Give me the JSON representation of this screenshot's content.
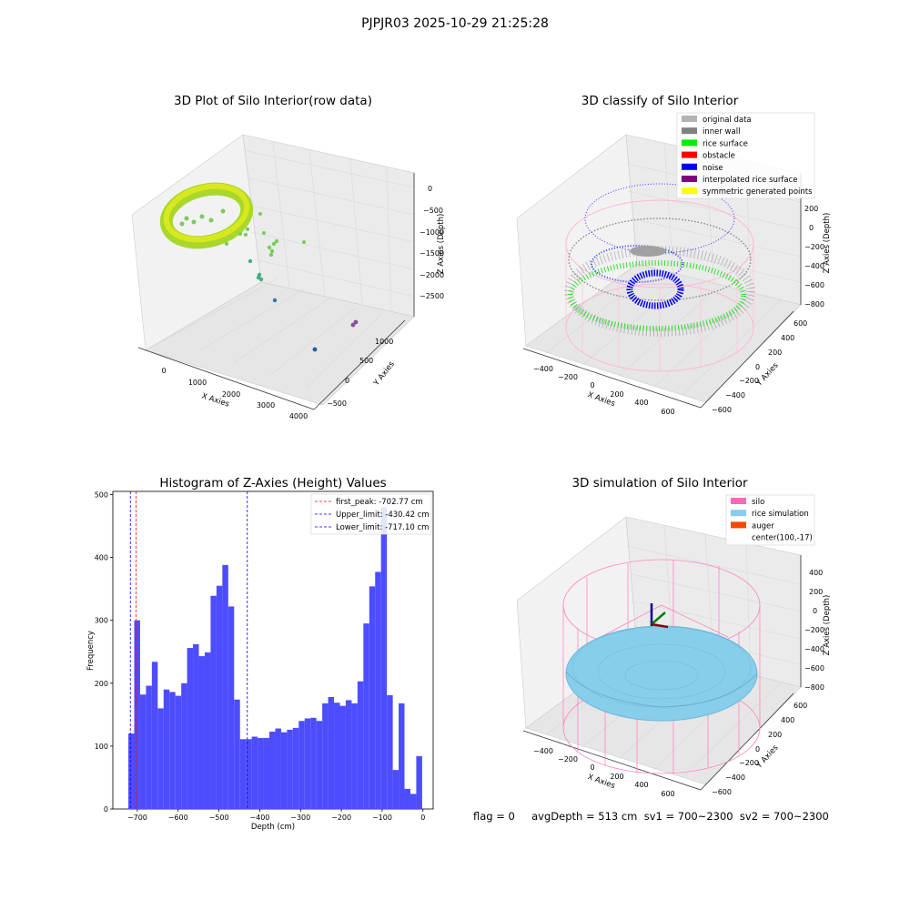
{
  "suptitle": "PJPJR03 2025-10-29 21:25:28",
  "footer": "flag = 0     avgDepth = 513 cm  sv1 = 700~2300  sv2 = 700~2300",
  "panels": {
    "p1": {
      "title": "3D Plot of Silo Interior(row data)",
      "xlabel": "X Axies",
      "ylabel": "Y Axies",
      "zlabel": "Z Axies (Depth)",
      "xticks": [
        "0",
        "1000",
        "2000",
        "3000",
        "4000"
      ],
      "yticks": [
        "1000",
        "500",
        "0",
        "−500"
      ],
      "zticks": [
        "0",
        "−500",
        "−1000",
        "−1500",
        "−2000",
        "−2500"
      ]
    },
    "p2": {
      "title": "3D classify of Silo Interior",
      "xlabel": "X Axies",
      "ylabel": "Y Axies",
      "zlabel": "Z Axies (Depth)",
      "xticks": [
        "−400",
        "−200",
        "0",
        "200",
        "400",
        "600"
      ],
      "yticks": [
        "600",
        "400",
        "200",
        "0",
        "−200",
        "−400",
        "−600"
      ],
      "zticks": [
        "200",
        "0",
        "−200",
        "−400",
        "−600",
        "−800"
      ],
      "legend": [
        {
          "label": "original data",
          "color": "#b3b3b3"
        },
        {
          "label": "inner wall",
          "color": "#808080"
        },
        {
          "label": "rice surface",
          "color": "#00ee00"
        },
        {
          "label": "obstacle",
          "color": "#ff0000"
        },
        {
          "label": "noise",
          "color": "#0000ee"
        },
        {
          "label": "interpolated rice surface",
          "color": "#800080"
        },
        {
          "label": "symmetric generated points",
          "color": "#ffff00"
        }
      ]
    },
    "p4": {
      "title": "3D simulation of Silo Interior",
      "xlabel": "X Axies",
      "ylabel": "Y Axies",
      "zlabel": "Z Axies (Depth)",
      "xticks": [
        "−400",
        "−200",
        "0",
        "200",
        "400",
        "600"
      ],
      "yticks": [
        "600",
        "400",
        "200",
        "0",
        "−200",
        "−400",
        "−600"
      ],
      "zticks": [
        "400",
        "200",
        "0",
        "−200",
        "−400",
        "−600",
        "−800"
      ],
      "legend": [
        {
          "label": "silo",
          "color": "#ff69b4"
        },
        {
          "label": "rice simulation",
          "color": "#87ceeb"
        },
        {
          "label": "auger",
          "color": "#ff4500"
        },
        {
          "label": "center(100,-17)",
          "color": ""
        }
      ]
    }
  },
  "chart_data": [
    {
      "type": "histogram",
      "title": "Histogram of Z-Axies (Height) Values",
      "xlabel": "Depth (cm)",
      "ylabel": "Frequency",
      "xlim": [
        -760,
        25
      ],
      "ylim": [
        0,
        505
      ],
      "xticks": [
        -700,
        -600,
        -500,
        -400,
        -300,
        -200,
        -100,
        0
      ],
      "yticks": [
        0,
        100,
        200,
        300,
        400,
        500
      ],
      "bar_color": "#4d4dff",
      "bin_start": -722,
      "bin_width": 14.4,
      "values": [
        120,
        300,
        182,
        196,
        234,
        160,
        190,
        186,
        180,
        200,
        256,
        262,
        243,
        249,
        339,
        355,
        388,
        322,
        174,
        111,
        111,
        115,
        113,
        113,
        123,
        128,
        122,
        126,
        129,
        140,
        144,
        145,
        140,
        168,
        178,
        169,
        164,
        173,
        168,
        203,
        295,
        354,
        377,
        480,
        181,
        62,
        168,
        32,
        24,
        84
      ],
      "vlines": [
        {
          "label": "first_peak: -702.77 cm",
          "x": -702.77,
          "color": "#ff0000"
        },
        {
          "label": "Upper_limit: -430.42 cm",
          "x": -430.42,
          "color": "#0000ff"
        },
        {
          "label": "Lower_limit: -717.10 cm",
          "x": -717.1,
          "color": "#0000ff"
        }
      ],
      "legend_position": "upper right"
    }
  ]
}
